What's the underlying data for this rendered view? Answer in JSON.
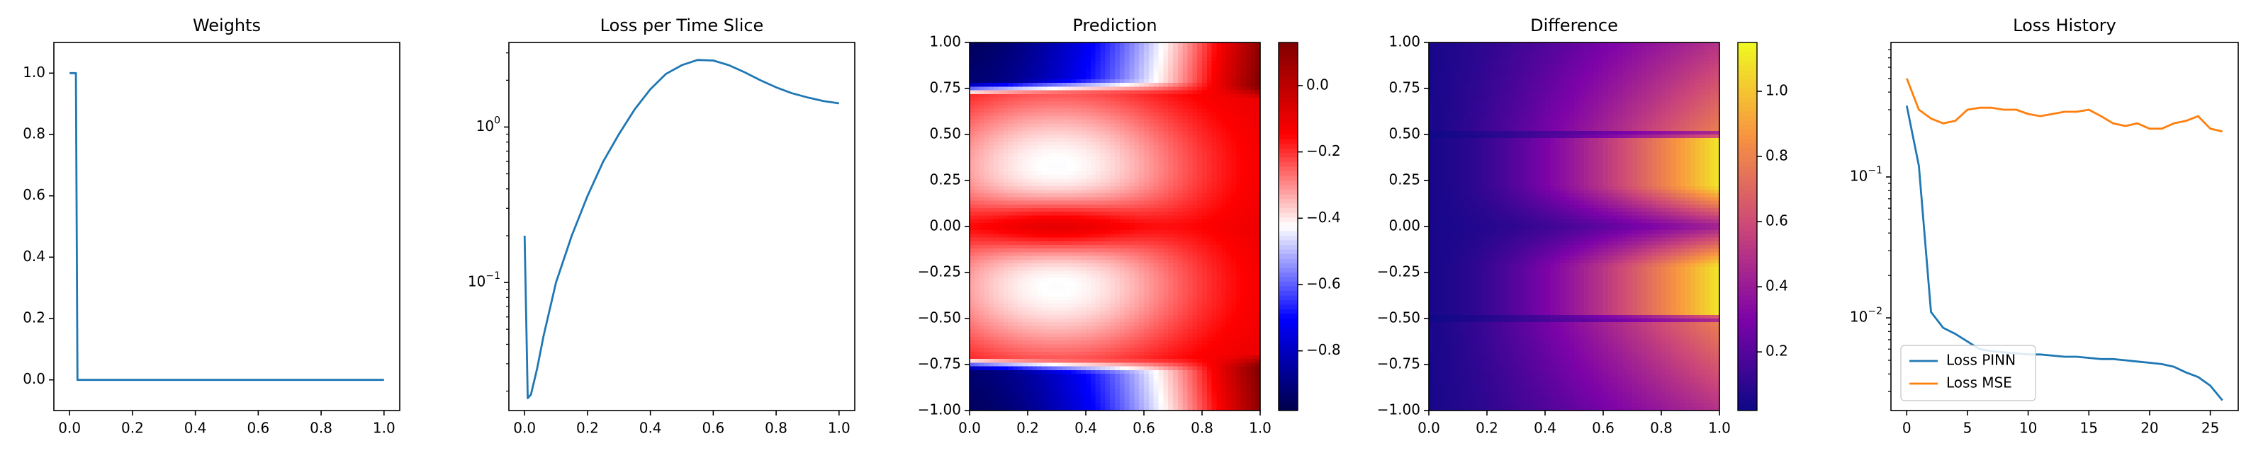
{
  "chart_data": [
    {
      "type": "line",
      "title": "Weights",
      "xlabel": "",
      "ylabel": "",
      "xlim": [
        -0.05,
        1.05
      ],
      "ylim": [
        -0.1,
        1.1
      ],
      "xticks": [
        0.0,
        0.2,
        0.4,
        0.6,
        0.8,
        1.0
      ],
      "xtick_labels": [
        "0.0",
        "0.2",
        "0.4",
        "0.6",
        "0.8",
        "1.0"
      ],
      "yticks": [
        0.0,
        0.2,
        0.4,
        0.6,
        0.8,
        1.0
      ],
      "ytick_labels": [
        "0.0",
        "0.2",
        "0.4",
        "0.6",
        "0.8",
        "1.0"
      ],
      "series": [
        {
          "name": "weights",
          "color": "#1f77b4",
          "x": [
            0.0,
            0.02,
            0.025,
            0.04,
            1.0
          ],
          "y": [
            1.0,
            1.0,
            0.0,
            0.0,
            0.0
          ]
        }
      ]
    },
    {
      "type": "line",
      "title": "Loss per Time Slice",
      "yscale": "log",
      "xlim": [
        -0.05,
        1.05
      ],
      "ylim": [
        0.015,
        3.5
      ],
      "xticks": [
        0.0,
        0.2,
        0.4,
        0.6,
        0.8,
        1.0
      ],
      "xtick_labels": [
        "0.0",
        "0.2",
        "0.4",
        "0.6",
        "0.8",
        "1.0"
      ],
      "yticks": [
        0.1,
        1.0
      ],
      "ytick_labels": [
        "10^-1",
        "10^0"
      ],
      "series": [
        {
          "name": "loss",
          "color": "#1f77b4",
          "x": [
            0.0,
            0.01,
            0.02,
            0.04,
            0.06,
            0.1,
            0.15,
            0.2,
            0.25,
            0.3,
            0.35,
            0.4,
            0.45,
            0.5,
            0.55,
            0.6,
            0.65,
            0.7,
            0.75,
            0.8,
            0.85,
            0.9,
            0.95,
            1.0
          ],
          "y": [
            0.2,
            0.018,
            0.019,
            0.028,
            0.045,
            0.1,
            0.2,
            0.36,
            0.6,
            0.9,
            1.3,
            1.75,
            2.2,
            2.5,
            2.7,
            2.68,
            2.5,
            2.25,
            2.0,
            1.8,
            1.65,
            1.55,
            1.47,
            1.42
          ]
        }
      ]
    },
    {
      "type": "heatmap",
      "title": "Prediction",
      "colormap": "seismic",
      "xlim": [
        0.0,
        1.0
      ],
      "ylim": [
        -1.0,
        1.0
      ],
      "xticks": [
        0.0,
        0.2,
        0.4,
        0.6,
        0.8,
        1.0
      ],
      "xtick_labels": [
        "0.0",
        "0.2",
        "0.4",
        "0.6",
        "0.8",
        "1.0"
      ],
      "yticks": [
        -1.0,
        -0.75,
        -0.5,
        -0.25,
        0.0,
        0.25,
        0.5,
        0.75,
        1.0
      ],
      "ytick_labels": [
        "−1.00",
        "−0.75",
        "−0.50",
        "−0.25",
        "0.00",
        "0.25",
        "0.50",
        "0.75",
        "1.00"
      ],
      "color_range": [
        -0.98,
        0.13
      ],
      "colorbar_ticks": [
        0.0,
        -0.2,
        -0.4,
        -0.6,
        -0.8
      ],
      "colorbar_tick_labels": [
        "0.0",
        "−0.2",
        "−0.4",
        "−0.6",
        "−0.8"
      ]
    },
    {
      "type": "heatmap",
      "title": "Difference",
      "colormap": "plasma",
      "xlim": [
        0.0,
        1.0
      ],
      "ylim": [
        -1.0,
        1.0
      ],
      "xticks": [
        0.0,
        0.2,
        0.4,
        0.6,
        0.8,
        1.0
      ],
      "xtick_labels": [
        "0.0",
        "0.2",
        "0.4",
        "0.6",
        "0.8",
        "1.0"
      ],
      "yticks": [
        -1.0,
        -0.75,
        -0.5,
        -0.25,
        0.0,
        0.25,
        0.5,
        0.75,
        1.0
      ],
      "ytick_labels": [
        "−1.00",
        "−0.75",
        "−0.50",
        "−0.25",
        "0.00",
        "0.25",
        "0.50",
        "0.75",
        "1.00"
      ],
      "color_range": [
        0.02,
        1.15
      ],
      "colorbar_ticks": [
        0.2,
        0.4,
        0.6,
        0.8,
        1.0
      ],
      "colorbar_tick_labels": [
        "0.2",
        "0.4",
        "0.6",
        "0.8",
        "1.0"
      ]
    },
    {
      "type": "line",
      "title": "Loss History",
      "yscale": "log",
      "xlim": [
        -1.3,
        27.3
      ],
      "ylim": [
        0.0022,
        0.9
      ],
      "xticks": [
        0,
        5,
        10,
        15,
        20,
        25
      ],
      "xtick_labels": [
        "0",
        "5",
        "10",
        "15",
        "20",
        "25"
      ],
      "yticks": [
        0.01,
        0.1
      ],
      "ytick_labels": [
        "10^-2",
        "10^-1"
      ],
      "legend": "lower-left",
      "series": [
        {
          "name": "Loss PINN",
          "color": "#1f77b4",
          "x": [
            0,
            1,
            2,
            3,
            4,
            5,
            6,
            7,
            8,
            9,
            10,
            11,
            12,
            13,
            14,
            15,
            16,
            17,
            18,
            19,
            20,
            21,
            22,
            23,
            24,
            25,
            26
          ],
          "y": [
            0.32,
            0.12,
            0.011,
            0.0085,
            0.0077,
            0.0068,
            0.006,
            0.0058,
            0.0057,
            0.0056,
            0.0055,
            0.0055,
            0.0054,
            0.0053,
            0.0053,
            0.0052,
            0.0051,
            0.0051,
            0.005,
            0.0049,
            0.0048,
            0.0047,
            0.0045,
            0.0041,
            0.0038,
            0.0033,
            0.0026
          ]
        },
        {
          "name": "Loss MSE",
          "color": "#ff7f0e",
          "x": [
            0,
            1,
            2,
            3,
            4,
            5,
            6,
            7,
            8,
            9,
            10,
            11,
            12,
            13,
            14,
            15,
            16,
            17,
            18,
            19,
            20,
            21,
            22,
            23,
            24,
            25,
            26
          ],
          "y": [
            0.5,
            0.3,
            0.26,
            0.24,
            0.25,
            0.3,
            0.31,
            0.31,
            0.3,
            0.3,
            0.28,
            0.27,
            0.28,
            0.29,
            0.29,
            0.3,
            0.27,
            0.24,
            0.23,
            0.24,
            0.22,
            0.22,
            0.24,
            0.25,
            0.27,
            0.22,
            0.21
          ]
        }
      ]
    }
  ]
}
